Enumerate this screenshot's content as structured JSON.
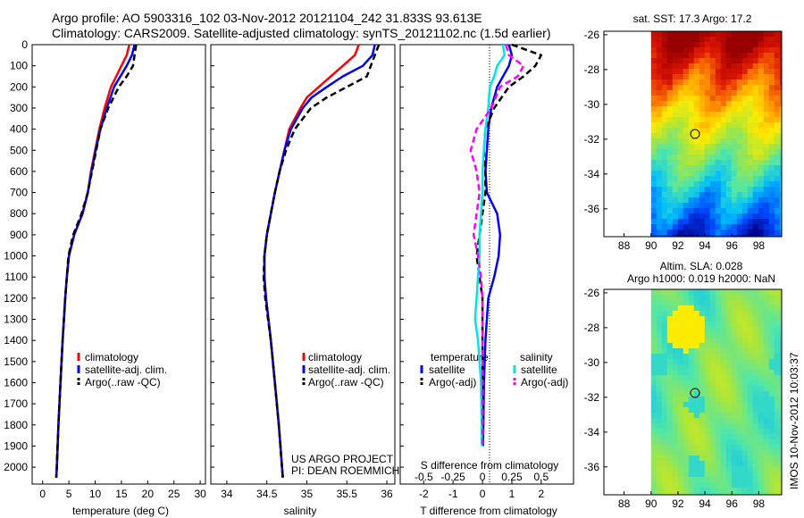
{
  "header": {
    "title_line1": "Argo profile: AO 5903316_102 03-Nov-2012 20121104_242 31.833S 93.613E",
    "title_line2": "Climatology: CARS2009. Satellite-adjusted climatology: synTS_20121102.nc (1.5d earlier)"
  },
  "colors": {
    "climatology": "#ff0000",
    "satellite": "#0000ff",
    "argo": "#000000",
    "sal_satellite": "#00e5e5",
    "sal_argo": "#ff00ff"
  },
  "credits": {
    "line1": "US ARGO PROJECT",
    "line2": "PI: DEAN ROEMMICH",
    "stamp": "IMOS 10-Nov-2012 10:03:37"
  },
  "chart_data": [
    {
      "type": "line",
      "panel": "temperature",
      "xlabel": "temperature (deg C)",
      "ylabel": "",
      "xlim": [
        -2,
        31
      ],
      "ylim": [
        2080,
        0
      ],
      "xticks": [
        "0",
        "5",
        "10",
        "15",
        "20",
        "25",
        "30"
      ],
      "yticks": [
        "0",
        "100",
        "200",
        "300",
        "400",
        "500",
        "600",
        "700",
        "800",
        "900",
        "1000",
        "1100",
        "1200",
        "1300",
        "1400",
        "1500",
        "1600",
        "1700",
        "1800",
        "1900",
        "2000"
      ],
      "legend": [
        "climatology",
        "satellite-adj. clim.",
        "Argo(..raw -QC)"
      ],
      "series": [
        {
          "name": "climatology",
          "depth": [
            0,
            50,
            100,
            150,
            200,
            300,
            400,
            500,
            600,
            700,
            800,
            900,
            1000,
            1100,
            1200,
            1400,
            1600,
            1800,
            2000,
            2050
          ],
          "values": [
            16.5,
            16.0,
            15.0,
            14.0,
            13.0,
            11.8,
            10.8,
            10.0,
            9.2,
            8.6,
            7.6,
            6.0,
            5.0,
            4.6,
            4.3,
            3.8,
            3.4,
            3.0,
            2.7,
            2.6
          ]
        },
        {
          "name": "satellite-adj. clim.",
          "depth": [
            0,
            50,
            100,
            150,
            200,
            300,
            400,
            500,
            600,
            700,
            800,
            900,
            1000,
            1100,
            1200,
            1400,
            1600,
            1800,
            2000,
            2050
          ],
          "values": [
            17.5,
            17.0,
            16.0,
            14.8,
            13.6,
            12.2,
            11.0,
            10.1,
            9.3,
            8.6,
            7.6,
            6.0,
            5.0,
            4.6,
            4.3,
            3.8,
            3.4,
            3.0,
            2.7,
            2.6
          ]
        },
        {
          "name": "Argo(..raw -QC)",
          "depth": [
            0,
            50,
            100,
            150,
            200,
            300,
            400,
            500,
            600,
            700,
            800,
            900,
            1000,
            1100,
            1200,
            1400,
            1600,
            1800,
            2000,
            2050
          ],
          "values": [
            17.8,
            17.5,
            17.2,
            16.0,
            14.5,
            12.5,
            11.0,
            10.2,
            9.4,
            8.6,
            7.4,
            5.8,
            4.9,
            4.6,
            4.3,
            3.8,
            3.4,
            3.0,
            2.7,
            2.6
          ]
        }
      ]
    },
    {
      "type": "line",
      "panel": "salinity",
      "xlabel": "salinity",
      "xlim": [
        33.8,
        36.1
      ],
      "ylim": [
        2080,
        0
      ],
      "xticks": [
        "34",
        "34.5",
        "35",
        "35.5",
        "36"
      ],
      "legend": [
        "climatology",
        "satellite-adj. clim.",
        "Argo(..raw -QC)"
      ],
      "series": [
        {
          "name": "climatology",
          "depth": [
            0,
            50,
            100,
            150,
            200,
            250,
            300,
            400,
            500,
            600,
            700,
            800,
            900,
            1000,
            1100,
            1200,
            1400,
            1600,
            1800,
            2000,
            2050
          ],
          "values": [
            35.65,
            35.6,
            35.45,
            35.3,
            35.15,
            35.0,
            34.92,
            34.78,
            34.72,
            34.66,
            34.6,
            34.55,
            34.5,
            34.47,
            34.47,
            34.49,
            34.55,
            34.6,
            34.65,
            34.69,
            34.7
          ]
        },
        {
          "name": "satellite-adj. clim.",
          "depth": [
            0,
            50,
            100,
            150,
            200,
            250,
            300,
            400,
            500,
            600,
            700,
            800,
            900,
            1000,
            1100,
            1200,
            1400,
            1600,
            1800,
            2000,
            2050
          ],
          "values": [
            35.85,
            35.82,
            35.7,
            35.45,
            35.25,
            35.06,
            34.95,
            34.8,
            34.72,
            34.66,
            34.6,
            34.55,
            34.5,
            34.47,
            34.47,
            34.49,
            34.55,
            34.6,
            34.65,
            34.69,
            34.7
          ]
        },
        {
          "name": "Argo(..raw -QC)",
          "depth": [
            0,
            50,
            100,
            150,
            200,
            250,
            300,
            400,
            500,
            600,
            700,
            800,
            900,
            1000,
            1100,
            1200,
            1400,
            1600,
            1800,
            2000,
            2050
          ],
          "values": [
            35.9,
            35.85,
            35.8,
            35.75,
            35.5,
            35.25,
            35.05,
            34.85,
            34.74,
            34.66,
            34.6,
            34.55,
            34.5,
            34.47,
            34.46,
            34.48,
            34.55,
            34.6,
            34.65,
            34.69,
            34.7
          ]
        }
      ]
    },
    {
      "type": "line",
      "panel": "differences",
      "xlabel": "T difference from climatology",
      "x2label": "S difference from climatology",
      "xlim": [
        -2.8,
        3.1
      ],
      "ylim": [
        2080,
        0
      ],
      "xticks": [
        "-2",
        "-1",
        "0",
        "1",
        "2"
      ],
      "x2ticks": [
        "-0.5",
        "-0.25",
        "0",
        "0.25",
        "0.5"
      ],
      "legend_headers": [
        "temperature",
        "salinity"
      ],
      "legend": [
        "satellite",
        "Argo(-adj)",
        "satellite",
        "Argo(-adj)"
      ],
      "series": [
        {
          "name": "satellite",
          "group": "temperature",
          "depth": [
            0,
            50,
            100,
            200,
            300,
            400,
            500,
            600,
            700,
            800,
            900,
            1000,
            1100,
            1200,
            1400,
            1600,
            1800,
            1900
          ],
          "values": [
            0.9,
            1.0,
            0.9,
            0.5,
            0.3,
            0.2,
            0.15,
            0.1,
            0.15,
            0.5,
            0.6,
            0.55,
            0.4,
            0.2,
            0.1,
            0.05,
            0.03,
            0.02
          ]
        },
        {
          "name": "Argo(-adj)",
          "group": "temperature",
          "depth": [
            0,
            50,
            100,
            150,
            200,
            300,
            400,
            500,
            600,
            700,
            800,
            900,
            1000,
            1100,
            1200,
            1400,
            1600,
            1800,
            1900
          ],
          "values": [
            1.0,
            2.0,
            1.8,
            1.4,
            0.9,
            0.4,
            0.1,
            0.05,
            0.1,
            0.1,
            0.0,
            -0.1,
            -0.2,
            -0.1,
            0.0,
            0.0,
            0.0,
            0.0,
            0.0
          ]
        },
        {
          "name": "satellite",
          "group": "salinity",
          "depth": [
            0,
            50,
            100,
            150,
            200,
            300,
            400,
            500,
            600,
            700,
            800,
            900,
            1000,
            1100,
            1200,
            1300,
            1400,
            1500,
            1600,
            1800,
            1900
          ],
          "values": [
            0.7,
            0.75,
            0.5,
            0.4,
            0.25,
            0.2,
            0.1,
            0.05,
            0.0,
            0.0,
            -0.05,
            -0.1,
            -0.1,
            -0.15,
            -0.2,
            -0.25,
            -0.15,
            -0.1,
            -0.05,
            -0.03,
            -0.02
          ]
        },
        {
          "name": "Argo(-adj)",
          "group": "salinity",
          "depth": [
            0,
            50,
            100,
            150,
            200,
            300,
            400,
            500,
            600,
            700,
            800,
            900,
            1000,
            1100,
            1200,
            1400,
            1600,
            1800,
            1900
          ],
          "values": [
            0.8,
            0.9,
            1.4,
            1.2,
            0.6,
            0.3,
            -0.2,
            -0.4,
            -0.2,
            -0.1,
            -0.2,
            -0.3,
            -0.15,
            -0.05,
            0.0,
            0.0,
            0.0,
            0.0,
            0.0
          ]
        }
      ]
    },
    {
      "type": "heatmap",
      "panel": "sst map",
      "title": "sat. SST: 17.3  Argo: 17.2",
      "xticks": [
        "88",
        "90",
        "92",
        "94",
        "96",
        "98"
      ],
      "yticks": [
        "-26",
        "-28",
        "-30",
        "-32",
        "-34",
        "-36"
      ],
      "marker": {
        "lon": 93.613,
        "lat": -31.833
      }
    },
    {
      "type": "heatmap",
      "panel": "sla map",
      "title_line1": "Altim. SLA: 0.028",
      "title_line2": "Argo h1000: 0.019  h2000: NaN",
      "xticks": [
        "88",
        "90",
        "92",
        "94",
        "96",
        "98"
      ],
      "yticks": [
        "-26",
        "-28",
        "-30",
        "-32",
        "-34",
        "-36"
      ],
      "marker": {
        "lon": 93.613,
        "lat": -31.833
      }
    }
  ]
}
